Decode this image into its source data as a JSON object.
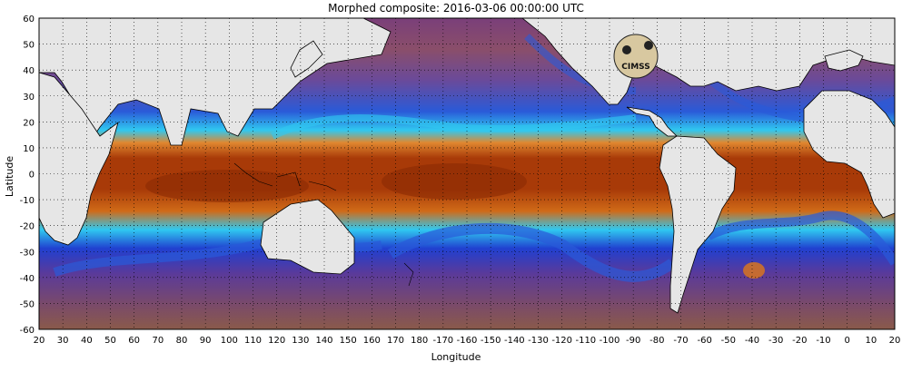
{
  "title": "Morphed composite: 2016-03-06 00:00:00 UTC",
  "xlabel": "Longitude",
  "ylabel": "Latitude",
  "logo_text": "CIMSS",
  "x_ticks": [
    "20",
    "30",
    "40",
    "50",
    "60",
    "70",
    "80",
    "90",
    "100",
    "110",
    "120",
    "130",
    "140",
    "150",
    "160",
    "170",
    "180",
    "-170",
    "-160",
    "-150",
    "-140",
    "-130",
    "-120",
    "-110",
    "-100",
    "-90",
    "-80",
    "-70",
    "-60",
    "-50",
    "-40",
    "-30",
    "-20",
    "-10",
    "0",
    "10",
    "20"
  ],
  "y_ticks": [
    "60",
    "50",
    "40",
    "30",
    "20",
    "10",
    "0",
    "-10",
    "-20",
    "-30",
    "-40",
    "-50",
    "-60"
  ],
  "colors": {
    "land": "#e6e6e6",
    "dry": "#7a3f7a",
    "dry2": "#8a5a4a",
    "low": "#1e4fd8",
    "mid_cyan": "#30c8f0",
    "mid_green": "#7ef07a",
    "mid_yellow": "#f0e060",
    "high_orange": "#e07818",
    "very_high": "#a83a08"
  }
}
